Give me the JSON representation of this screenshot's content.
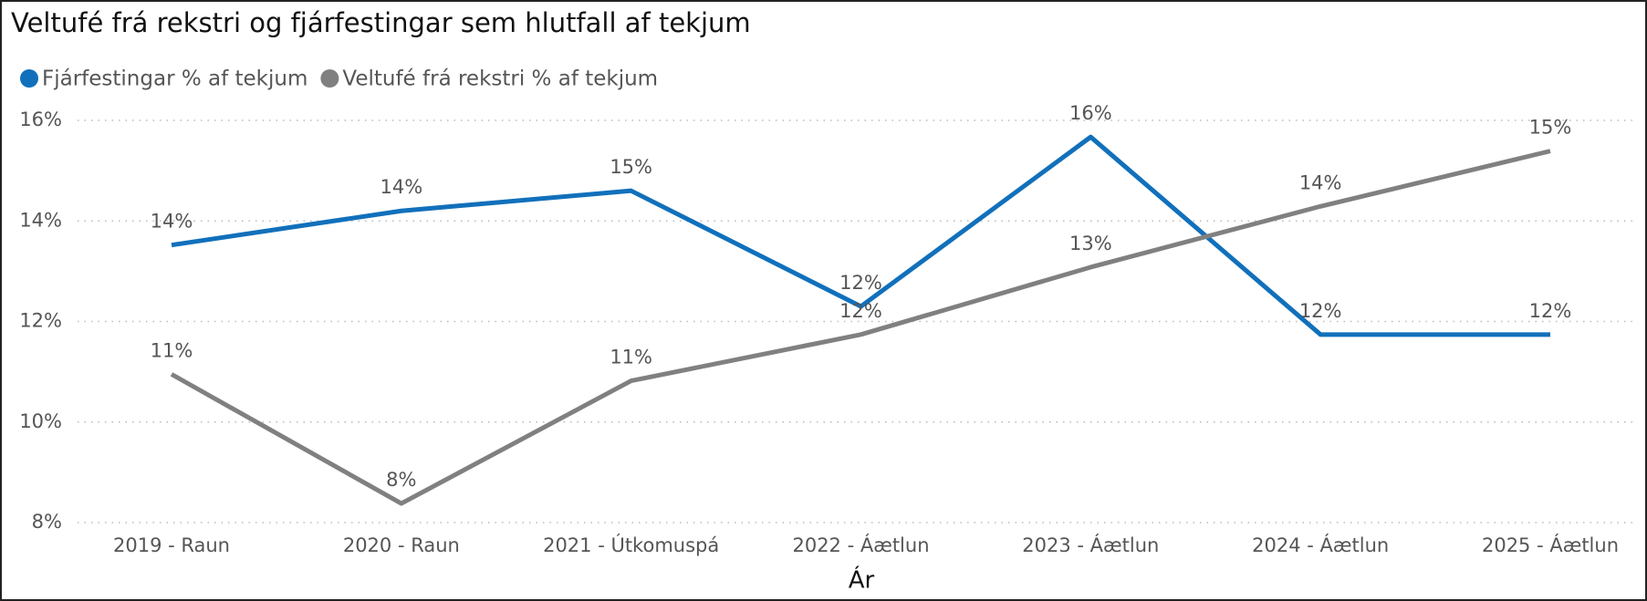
{
  "chart_data": {
    "type": "line",
    "title": "Veltufé frá rekstri og fjárfestingar sem hlutfall af tekjum",
    "x_label": "Ár",
    "categories": [
      "2019 - Raun",
      "2020 - Raun",
      "2021 - Útkomuspá",
      "2022 - Áætlun",
      "2023 - Áætlun",
      "2024 - Áætlun",
      "2025 - Áætlun"
    ],
    "series": [
      {
        "name": "Fjárfestingar % af tekjum",
        "color": "#1170bb",
        "values": [
          13.52,
          14.2,
          14.6,
          12.3,
          15.67,
          11.74,
          11.74
        ],
        "value_labels": [
          "14%",
          "14%",
          "15%",
          "12%",
          "16%",
          "12%",
          "12%"
        ]
      },
      {
        "name": "Veltufé frá rekstri % af tekjum",
        "color": "#808080",
        "values": [
          10.95,
          8.38,
          10.82,
          11.74,
          13.08,
          14.29,
          15.39
        ],
        "value_labels": [
          "11%",
          "8%",
          "11%",
          "12%",
          "13%",
          "14%",
          "15%"
        ]
      }
    ],
    "ylim": [
      8,
      16
    ],
    "yticks": [
      {
        "value": 8,
        "label": "8%"
      },
      {
        "value": 10,
        "label": "10%"
      },
      {
        "value": 12,
        "label": "12%"
      },
      {
        "value": 14,
        "label": "14%"
      },
      {
        "value": 16,
        "label": "16%"
      }
    ],
    "grid": true,
    "legend": "top-left"
  }
}
